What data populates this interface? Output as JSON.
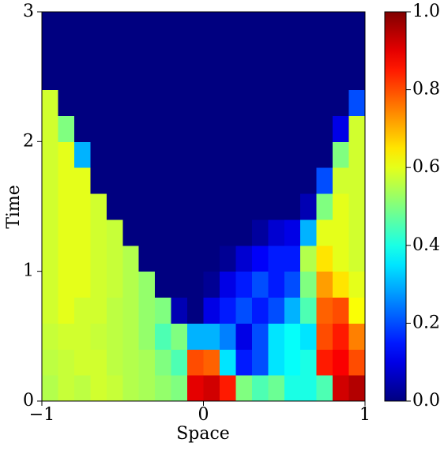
{
  "chart_data": {
    "type": "heatmap",
    "xlabel": "Space",
    "ylabel": "Time",
    "colormap": "jet",
    "xlim": [
      -1,
      1
    ],
    "ylim": [
      0,
      3
    ],
    "xticks": [
      {
        "value": -1,
        "label": "−1"
      },
      0,
      1
    ],
    "yticks": [
      0,
      1,
      2,
      3
    ],
    "clim": [
      0,
      1
    ],
    "cticks": [
      {
        "value": 0,
        "label": "0.0"
      },
      0.2,
      0.4,
      0.6,
      0.8,
      {
        "value": 1,
        "label": "1.0"
      }
    ],
    "z": [
      [
        0.55,
        0.57,
        0.56,
        0.58,
        0.57,
        0.55,
        0.54,
        0.52,
        0.5,
        0.9,
        0.92,
        0.85,
        0.5,
        0.45,
        0.48,
        0.4,
        0.4,
        0.45,
        0.92,
        0.95
      ],
      [
        0.56,
        0.57,
        0.58,
        0.58,
        0.56,
        0.55,
        0.54,
        0.5,
        0.45,
        0.8,
        0.78,
        0.35,
        0.15,
        0.2,
        0.35,
        0.38,
        0.4,
        0.85,
        0.88,
        0.8
      ],
      [
        0.57,
        0.58,
        0.58,
        0.57,
        0.56,
        0.55,
        0.52,
        0.45,
        0.5,
        0.3,
        0.3,
        0.25,
        0.1,
        0.2,
        0.35,
        0.38,
        0.35,
        0.8,
        0.85,
        0.75
      ],
      [
        0.58,
        0.6,
        0.58,
        0.58,
        0.56,
        0.55,
        0.52,
        0.5,
        0.05,
        0,
        0.1,
        0.15,
        0.2,
        0.15,
        0.2,
        0.3,
        0.45,
        0.78,
        0.8,
        0.62
      ],
      [
        0.58,
        0.6,
        0.6,
        0.58,
        0.57,
        0.55,
        0.52,
        0,
        0,
        0,
        0.02,
        0.1,
        0.15,
        0.2,
        0.15,
        0.2,
        0.5,
        0.72,
        0.65,
        0.6
      ],
      [
        0.58,
        0.6,
        0.6,
        0.58,
        0.57,
        0.55,
        0,
        0,
        0,
        0,
        0,
        0.02,
        0.08,
        0.12,
        0.15,
        0.15,
        0.55,
        0.65,
        0.6,
        0.58
      ],
      [
        0.58,
        0.6,
        0.6,
        0.58,
        0.57,
        0,
        0,
        0,
        0,
        0,
        0,
        0,
        0,
        0.03,
        0.08,
        0.1,
        0.3,
        0.6,
        0.6,
        0.58
      ],
      [
        0.58,
        0.6,
        0.6,
        0.58,
        0,
        0,
        0,
        0,
        0,
        0,
        0,
        0,
        0,
        0,
        0,
        0,
        0.05,
        0.5,
        0.6,
        0.58
      ],
      [
        0.58,
        0.6,
        0.6,
        0,
        0,
        0,
        0,
        0,
        0,
        0,
        0,
        0,
        0,
        0,
        0,
        0,
        0,
        0.2,
        0.58,
        0.58
      ],
      [
        0.58,
        0.6,
        0.3,
        0,
        0,
        0,
        0,
        0,
        0,
        0,
        0,
        0,
        0,
        0,
        0,
        0,
        0,
        0,
        0.5,
        0.58
      ],
      [
        0.58,
        0.5,
        0,
        0,
        0,
        0,
        0,
        0,
        0,
        0,
        0,
        0,
        0,
        0,
        0,
        0,
        0,
        0,
        0.1,
        0.58
      ],
      [
        0.58,
        0,
        0,
        0,
        0,
        0,
        0,
        0,
        0,
        0,
        0,
        0,
        0,
        0,
        0,
        0,
        0,
        0,
        0,
        0.2
      ],
      [
        0,
        0,
        0,
        0,
        0,
        0,
        0,
        0,
        0,
        0,
        0,
        0,
        0,
        0,
        0,
        0,
        0,
        0,
        0,
        0
      ],
      [
        0,
        0,
        0,
        0,
        0,
        0,
        0,
        0,
        0,
        0,
        0,
        0,
        0,
        0,
        0,
        0,
        0,
        0,
        0,
        0
      ],
      [
        0,
        0,
        0,
        0,
        0,
        0,
        0,
        0,
        0,
        0,
        0,
        0,
        0,
        0,
        0,
        0,
        0,
        0,
        0,
        0
      ]
    ]
  }
}
